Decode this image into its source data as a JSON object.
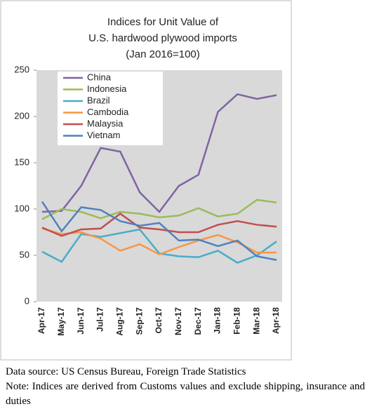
{
  "chart_data": {
    "type": "line",
    "title": [
      "Indices for Unit Value of",
      "U.S. hardwood plywood imports",
      "(Jan 2016=100)"
    ],
    "categories": [
      "Apr-17",
      "May-17",
      "Jun-17",
      "Jul-17",
      "Aug-17",
      "Sep-17",
      "Oct-17",
      "Nov-17",
      "Dec-17",
      "Jan-18",
      "Feb-18",
      "Mar-18",
      "Apr-18"
    ],
    "series": [
      {
        "name": "China",
        "color": "#8064a2",
        "values": [
          97,
          98,
          125,
          166,
          162,
          118,
          97,
          125,
          137,
          205,
          224,
          219,
          223
        ]
      },
      {
        "name": "Indonesia",
        "color": "#9bbb59",
        "values": [
          89,
          100,
          97,
          90,
          97,
          95,
          91,
          93,
          101,
          92,
          95,
          110,
          107
        ]
      },
      {
        "name": "Brazil",
        "color": "#4bacc6",
        "values": [
          54,
          43,
          73,
          70,
          74,
          78,
          52,
          49,
          48,
          55,
          42,
          50,
          65
        ]
      },
      {
        "name": "Cambodia",
        "color": "#f79646",
        "values": [
          79,
          73,
          75,
          68,
          55,
          62,
          51,
          59,
          66,
          72,
          64,
          53,
          53
        ]
      },
      {
        "name": "Malaysia",
        "color": "#c0504d",
        "values": [
          80,
          71,
          78,
          79,
          95,
          80,
          78,
          75,
          75,
          83,
          87,
          83,
          81
        ]
      },
      {
        "name": "Vietnam",
        "color": "#4f81bd",
        "values": [
          108,
          76,
          102,
          99,
          87,
          82,
          85,
          66,
          67,
          60,
          66,
          49,
          45
        ]
      }
    ],
    "ylim": [
      0,
      250
    ],
    "yticks": [
      0,
      50,
      100,
      150,
      200,
      250
    ],
    "grid": false,
    "legend": "upper left",
    "plot_background": "#d9d9d9"
  },
  "notes": [
    "Data source: US Census Bureau, Foreign Trade Statistics",
    "Note: Indices are derived from Customs values and exclude shipping, insurance and duties"
  ]
}
